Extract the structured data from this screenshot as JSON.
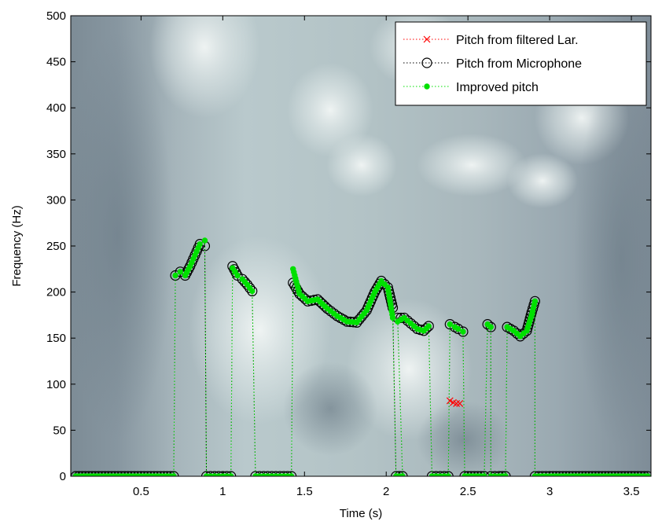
{
  "chart_data": {
    "type": "scatter",
    "title": "",
    "xlabel": "Time (s)",
    "ylabel": "Frequency (Hz)",
    "xlim": [
      0.07,
      3.62
    ],
    "ylim": [
      0,
      500
    ],
    "xticks": [
      0.5,
      1,
      1.5,
      2,
      2.5,
      3,
      3.5
    ],
    "xtick_labels": [
      "0.5",
      "1",
      "1.5",
      "2",
      "2.5",
      "3",
      "3.5"
    ],
    "yticks": [
      0,
      50,
      100,
      150,
      200,
      250,
      300,
      350,
      400,
      450,
      500
    ],
    "ytick_labels": [
      "0",
      "50",
      "100",
      "150",
      "200",
      "250",
      "300",
      "350",
      "400",
      "450",
      "500"
    ],
    "grid": false,
    "background": "spectrogram (grayscale)",
    "legend": {
      "placement": "top-right"
    },
    "colors": {
      "lar": "#ff0000",
      "mic": "#000000",
      "improved": "#00e000"
    },
    "series": [
      {
        "name": "Pitch from filtered Lar.",
        "style": "red dotted line with x markers",
        "segments": [
          {
            "x": [
              2.39,
              2.41,
              2.43,
              2.45
            ],
            "y": [
              82,
              80,
              79,
              79
            ]
          }
        ]
      },
      {
        "name": "Pitch from Microphone",
        "style": "black dotted line with open circle markers",
        "segments": [
          {
            "x": [
              0.1,
              0.2,
              0.3,
              0.4,
              0.5,
              0.6,
              0.7
            ],
            "y": [
              0,
              0,
              0,
              0,
              0,
              0,
              0
            ]
          },
          {
            "x": [
              0.71,
              0.74,
              0.77,
              0.8,
              0.83,
              0.86,
              0.89
            ],
            "y": [
              218,
              222,
              218,
              228,
              240,
              252,
              250
            ]
          },
          {
            "x": [
              0.9,
              0.95,
              1.0,
              1.05
            ],
            "y": [
              0,
              0,
              0,
              0
            ]
          },
          {
            "x": [
              1.06,
              1.09,
              1.12,
              1.15,
              1.18
            ],
            "y": [
              228,
              218,
              214,
              208,
              201
            ]
          },
          {
            "x": [
              1.2,
              1.25,
              1.3,
              1.35,
              1.42
            ],
            "y": [
              0,
              0,
              0,
              0,
              0
            ]
          },
          {
            "x": [
              1.43,
              1.47,
              1.52,
              1.58,
              1.64,
              1.7,
              1.76,
              1.82,
              1.88,
              1.93,
              1.97,
              2.01,
              2.04
            ],
            "y": [
              210,
              198,
              190,
              192,
              182,
              174,
              168,
              167,
              180,
              200,
              212,
              205,
              183
            ]
          },
          {
            "x": [
              2.06,
              2.1
            ],
            "y": [
              0,
              0
            ]
          },
          {
            "x": [
              2.07,
              2.11,
              2.15,
              2.19,
              2.23,
              2.26
            ],
            "y": [
              172,
              172,
              166,
              160,
              158,
              163
            ]
          },
          {
            "x": [
              2.28,
              2.33,
              2.38
            ],
            "y": [
              0,
              0,
              0
            ]
          },
          {
            "x": [
              2.39,
              2.42,
              2.44,
              2.47
            ],
            "y": [
              165,
              162,
              160,
              157
            ]
          },
          {
            "x": [
              2.48,
              2.54,
              2.6
            ],
            "y": [
              0,
              0,
              0
            ]
          },
          {
            "x": [
              2.62,
              2.64
            ],
            "y": [
              165,
              162
            ]
          },
          {
            "x": [
              2.64,
              2.69,
              2.73
            ],
            "y": [
              0,
              0,
              0
            ]
          },
          {
            "x": [
              2.74,
              2.78,
              2.82,
              2.86,
              2.89,
              2.91
            ],
            "y": [
              162,
              158,
              152,
              158,
              178,
              190
            ]
          },
          {
            "x": [
              2.91,
              3.0,
              3.1,
              3.2,
              3.3,
              3.4,
              3.5,
              3.6
            ],
            "y": [
              0,
              0,
              0,
              0,
              0,
              0,
              0,
              0
            ]
          }
        ]
      },
      {
        "name": "Improved pitch",
        "style": "green dotted line with filled dot markers",
        "segments": [
          {
            "x": [
              0.1,
              0.2,
              0.3,
              0.4,
              0.5,
              0.6,
              0.7
            ],
            "y": [
              0,
              0,
              0,
              0,
              0,
              0,
              0
            ]
          },
          {
            "x": [
              0.71,
              0.74,
              0.77,
              0.8,
              0.83,
              0.86,
              0.89
            ],
            "y": [
              218,
              222,
              218,
              228,
              240,
              252,
              256
            ]
          },
          {
            "x": [
              0.9,
              0.95,
              1.0,
              1.05
            ],
            "y": [
              0,
              0,
              0,
              0
            ]
          },
          {
            "x": [
              1.06,
              1.09,
              1.12,
              1.15,
              1.18
            ],
            "y": [
              226,
              218,
              214,
              208,
              201
            ]
          },
          {
            "x": [
              1.2,
              1.25,
              1.3,
              1.35,
              1.42
            ],
            "y": [
              0,
              0,
              0,
              0,
              0
            ]
          },
          {
            "x": [
              1.43,
              1.47,
              1.52,
              1.58,
              1.64,
              1.7,
              1.76,
              1.82,
              1.88,
              1.93,
              1.97,
              2.01,
              2.04
            ],
            "y": [
              225,
              198,
              190,
              192,
              182,
              174,
              168,
              167,
              180,
              200,
              212,
              205,
              172
            ]
          },
          {
            "x": [
              2.06,
              2.1
            ],
            "y": [
              0,
              0
            ]
          },
          {
            "x": [
              2.07,
              2.11,
              2.15,
              2.19,
              2.23,
              2.26
            ],
            "y": [
              168,
              172,
              166,
              160,
              158,
              163
            ]
          },
          {
            "x": [
              2.28,
              2.33,
              2.38
            ],
            "y": [
              0,
              0,
              0
            ]
          },
          {
            "x": [
              2.39,
              2.42,
              2.44,
              2.47
            ],
            "y": [
              165,
              162,
              160,
              157
            ]
          },
          {
            "x": [
              2.48,
              2.54,
              2.6
            ],
            "y": [
              0,
              0,
              0
            ]
          },
          {
            "x": [
              2.62,
              2.64
            ],
            "y": [
              165,
              162
            ]
          },
          {
            "x": [
              2.64,
              2.69,
              2.73
            ],
            "y": [
              0,
              0,
              0
            ]
          },
          {
            "x": [
              2.74,
              2.78,
              2.82,
              2.86,
              2.89,
              2.91
            ],
            "y": [
              162,
              158,
              152,
              158,
              175,
              190
            ]
          },
          {
            "x": [
              2.91,
              3.0,
              3.1,
              3.2,
              3.3,
              3.4,
              3.5,
              3.6
            ],
            "y": [
              0,
              0,
              0,
              0,
              0,
              0,
              0,
              0
            ]
          }
        ]
      }
    ]
  }
}
